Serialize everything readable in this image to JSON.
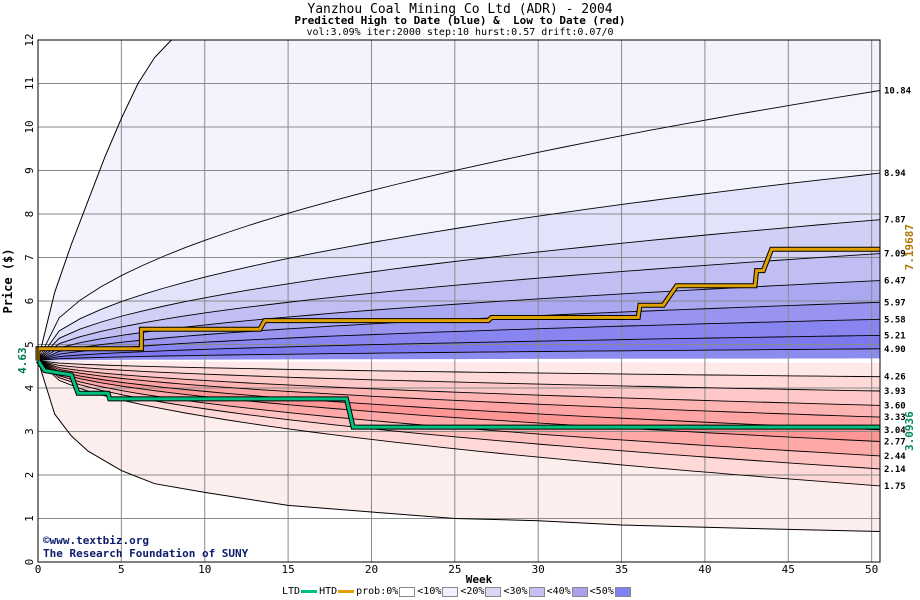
{
  "header": {
    "title": "Yanzhou Coal Mining Co Ltd (ADR) - 2004",
    "subtitle": "Predicted High to Date (blue) &  Low to Date (red)",
    "params": "vol:3.09% iter:2000 step:10 hurst:0.57 drift:0.07/0"
  },
  "credits": {
    "line1": "©www.textbiz.org",
    "line2": "The Research Foundation of SUNY"
  },
  "legend": {
    "ltd_label": "LTD",
    "htd_label": "HTD",
    "prob_label": "prob:0%",
    "items": [
      "<10%",
      "<20%",
      "<30%",
      "<40%",
      "<50%"
    ],
    "ltd_color": "#00c080",
    "htd_color": "#e0a000",
    "swatch_colors": [
      "#ffffff",
      "#f0f0ff",
      "#d8d8f4",
      "#c8c0ee",
      "#a8a0f0",
      "#8080f0"
    ]
  },
  "chart_data": {
    "type": "line",
    "title": "Yanzhou Coal Mining Co Ltd (ADR) - 2004",
    "xlabel": "Week",
    "ylabel": "Price ($)",
    "xlim": [
      0,
      50.5
    ],
    "ylim": [
      0,
      12
    ],
    "x_ticks": [
      0,
      5,
      10,
      15,
      20,
      25,
      30,
      35,
      40,
      45,
      50
    ],
    "y_ticks": [
      0,
      1,
      2,
      3,
      4,
      5,
      6,
      7,
      8,
      9,
      10,
      11,
      12
    ],
    "grid": true,
    "start_price": 4.63,
    "start_label": "4.63",
    "htd_final_label": "7.19687",
    "ltd_final_label": "3.0936",
    "upper_band_ends": [
      {
        "label": "10.84",
        "value": 10.84
      },
      {
        "label": "8.94",
        "value": 8.94
      },
      {
        "label": "7.87",
        "value": 7.87
      },
      {
        "label": "7.09",
        "value": 7.09
      },
      {
        "label": "6.47",
        "value": 6.47
      },
      {
        "label": "5.97",
        "value": 5.97
      },
      {
        "label": "5.58",
        "value": 5.58
      },
      {
        "label": "5.21",
        "value": 5.21
      },
      {
        "label": "4.90",
        "value": 4.9
      }
    ],
    "lower_band_ends": [
      {
        "label": "4.26",
        "value": 4.26
      },
      {
        "label": "3.93",
        "value": 3.93
      },
      {
        "label": "3.60",
        "value": 3.6
      },
      {
        "label": "3.33",
        "value": 3.33
      },
      {
        "label": "3.04",
        "value": 3.04
      },
      {
        "label": "2.77",
        "value": 2.77
      },
      {
        "label": "2.44",
        "value": 2.44
      },
      {
        "label": "2.14",
        "value": 2.14
      },
      {
        "label": "1.75",
        "value": 1.75
      }
    ],
    "upper_outer_curve": [
      [
        0,
        4.63
      ],
      [
        1,
        6.2
      ],
      [
        2,
        7.3
      ],
      [
        3,
        8.3
      ],
      [
        4,
        9.3
      ],
      [
        5,
        10.2
      ],
      [
        6,
        11.0
      ],
      [
        7,
        11.6
      ],
      [
        8,
        12.0
      ]
    ],
    "lower_outer_curve": [
      [
        0,
        4.63
      ],
      [
        1,
        3.4
      ],
      [
        2,
        2.9
      ],
      [
        3,
        2.55
      ],
      [
        5,
        2.1
      ],
      [
        7,
        1.8
      ],
      [
        10,
        1.6
      ],
      [
        15,
        1.3
      ],
      [
        20,
        1.15
      ],
      [
        25,
        1.0
      ],
      [
        30,
        0.95
      ],
      [
        35,
        0.85
      ],
      [
        40,
        0.8
      ],
      [
        45,
        0.75
      ],
      [
        50.5,
        0.7
      ]
    ],
    "band_fill_colors_upper": [
      "#f4f4ff",
      "#e2e2fa",
      "#d0d0f6",
      "#c0bef2",
      "#aaa8f0",
      "#9894f0",
      "#8884f0",
      "#7c78f0",
      "#8c8cf0"
    ],
    "band_fill_colors_lower": [
      "#ffe8e8",
      "#ffd8d8",
      "#ffc8c8",
      "#ffb4b4",
      "#ffa4a4",
      "#ff9696",
      "#ffa8a8",
      "#ffc0c0",
      "#ffd8d8"
    ],
    "htd_series": [
      [
        0,
        4.63
      ],
      [
        0,
        4.9
      ],
      [
        6.2,
        4.9
      ],
      [
        6.2,
        5.35
      ],
      [
        13.3,
        5.35
      ],
      [
        13.6,
        5.55
      ],
      [
        27,
        5.55
      ],
      [
        27.2,
        5.62
      ],
      [
        36,
        5.62
      ],
      [
        36.1,
        5.9
      ],
      [
        37.5,
        5.9
      ],
      [
        38.3,
        6.35
      ],
      [
        43,
        6.35
      ],
      [
        43.1,
        6.7
      ],
      [
        43.5,
        6.7
      ],
      [
        44,
        7.19
      ],
      [
        50.5,
        7.19
      ]
    ],
    "ltd_series": [
      [
        0,
        4.63
      ],
      [
        0.4,
        4.4
      ],
      [
        2,
        4.3
      ],
      [
        2.4,
        3.88
      ],
      [
        4.2,
        3.88
      ],
      [
        4.3,
        3.75
      ],
      [
        18.5,
        3.75
      ],
      [
        18.9,
        3.1
      ],
      [
        50.5,
        3.1
      ]
    ]
  }
}
